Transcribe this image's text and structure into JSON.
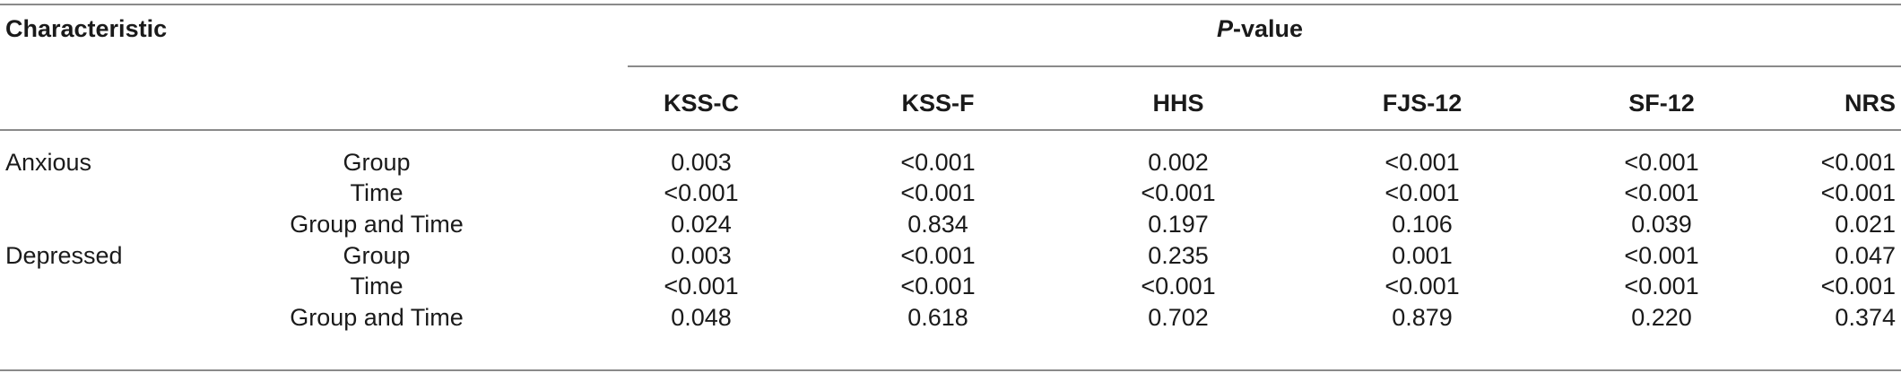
{
  "table": {
    "header": {
      "characteristic": "Characteristic",
      "pvalue_prefix": "P",
      "pvalue_suffix": "-value",
      "columns": [
        "KSS-C",
        "KSS-F",
        "HHS",
        "FJS-12",
        "SF-12",
        "NRS"
      ]
    },
    "groups": [
      {
        "name": "Anxious",
        "rows": [
          {
            "label": "Group",
            "values": [
              "0.003",
              "<0.001",
              "0.002",
              "<0.001",
              "<0.001",
              "<0.001"
            ]
          },
          {
            "label": "Time",
            "values": [
              "<0.001",
              "<0.001",
              "<0.001",
              "<0.001",
              "<0.001",
              "<0.001"
            ]
          },
          {
            "label": "Group and Time",
            "values": [
              "0.024",
              "0.834",
              "0.197",
              "0.106",
              "0.039",
              "0.021"
            ]
          }
        ]
      },
      {
        "name": "Depressed",
        "rows": [
          {
            "label": "Group",
            "values": [
              "0.003",
              "<0.001",
              "0.235",
              "0.001",
              "<0.001",
              "0.047"
            ]
          },
          {
            "label": "Time",
            "values": [
              "<0.001",
              "<0.001",
              "<0.001",
              "<0.001",
              "<0.001",
              "<0.001"
            ]
          },
          {
            "label": "Group and Time",
            "values": [
              "0.048",
              "0.618",
              "0.702",
              "0.879",
              "0.220",
              "0.374"
            ]
          }
        ]
      }
    ]
  }
}
